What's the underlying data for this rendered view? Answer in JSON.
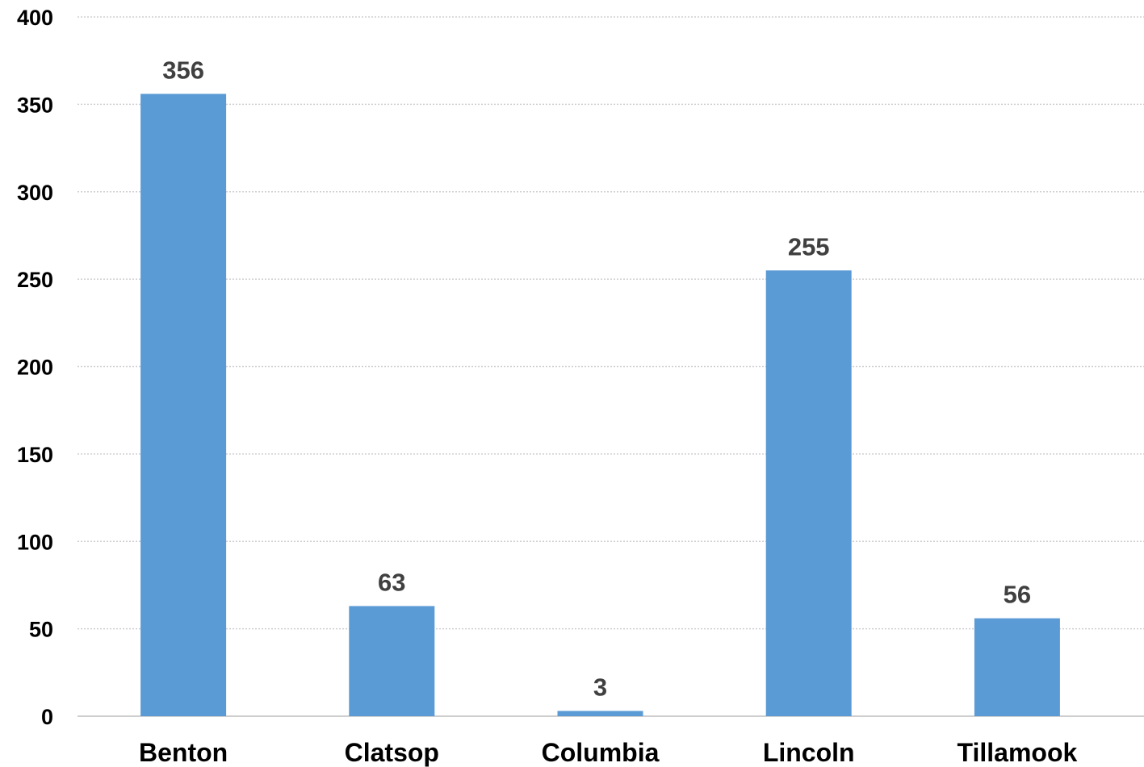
{
  "chart_data": {
    "type": "bar",
    "title": "",
    "xlabel": "",
    "ylabel": "",
    "categories": [
      "Benton",
      "Clatsop",
      "Columbia",
      "Lincoln",
      "Tillamook"
    ],
    "values": [
      356,
      63,
      3,
      255,
      56
    ],
    "data_labels": [
      "356",
      "63",
      "3",
      "255",
      "56"
    ],
    "ylim": [
      0,
      400
    ],
    "yticks": [
      0,
      50,
      100,
      150,
      200,
      250,
      300,
      350,
      400
    ],
    "ytick_labels": [
      "0",
      "50",
      "100",
      "150",
      "200",
      "250",
      "300",
      "350",
      "400"
    ],
    "grid": true,
    "legend": "none",
    "bar_color": "#5b9bd5"
  }
}
